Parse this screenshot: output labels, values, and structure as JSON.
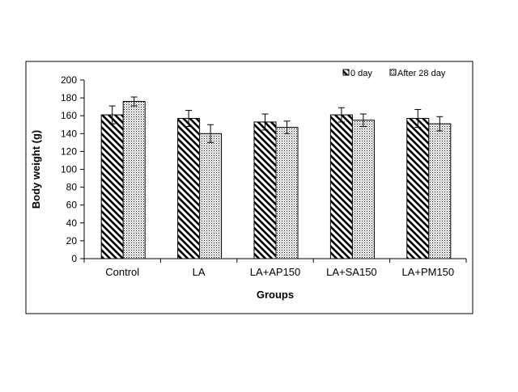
{
  "chart_data": {
    "type": "bar",
    "xlabel": "Groups",
    "ylabel": "Body weight (g)",
    "categories": [
      "Control",
      "LA",
      "LA+AP150",
      "LA+SA150",
      "LA+PM150"
    ],
    "ylim": [
      0,
      200
    ],
    "yticks": [
      0,
      20,
      40,
      60,
      80,
      100,
      120,
      140,
      160,
      180,
      200
    ],
    "grid": false,
    "legend_position": "top-right",
    "series": [
      {
        "name": "0 day",
        "pattern": "diagonal-hatch",
        "values": [
          161,
          157,
          153,
          161,
          157
        ],
        "errors": [
          10,
          9,
          9,
          8,
          10
        ]
      },
      {
        "name": "After 28 day",
        "pattern": "dotted",
        "values": [
          176,
          140,
          147,
          155,
          151
        ],
        "errors": [
          5,
          10,
          7,
          7,
          8
        ]
      }
    ]
  }
}
